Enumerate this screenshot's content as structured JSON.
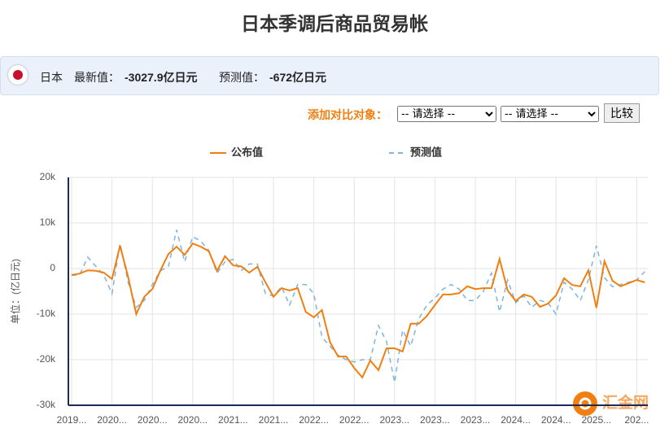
{
  "header": {
    "title": "日本季调后商品贸易帐"
  },
  "info": {
    "country": "日本",
    "latest_label": "最新值：",
    "latest_value": "-3027.9亿日元",
    "forecast_label": "预测值：",
    "forecast_value": "-672亿日元"
  },
  "compare": {
    "label": "添加对比对象：",
    "select_1": "-- 请选择 --",
    "select_2": "-- 请选择 --",
    "button": "比较"
  },
  "watermark": "汇金网",
  "chart_data": {
    "type": "line",
    "y_label": "单位：(亿日元)",
    "categories": [
      "2019...",
      null,
      null,
      null,
      null,
      "2020...",
      null,
      null,
      null,
      null,
      "2020...",
      null,
      null,
      null,
      null,
      "2020...",
      null,
      null,
      null,
      null,
      "2021...",
      null,
      null,
      null,
      null,
      "2021...",
      null,
      null,
      null,
      null,
      "2022...",
      null,
      null,
      null,
      null,
      "2022...",
      null,
      null,
      null,
      null,
      "2023...",
      null,
      null,
      null,
      null,
      "2023...",
      null,
      null,
      null,
      null,
      "2023...",
      null,
      null,
      null,
      null,
      "2024...",
      null,
      null,
      null,
      null,
      "2024...",
      null,
      null,
      null,
      null,
      "2025...",
      null,
      null,
      null,
      null,
      "202...",
      null
    ],
    "series": [
      {
        "name": "公布值",
        "color": "#f07f0f",
        "dashed": false,
        "values": [
          -1400,
          -1100,
          -400,
          -500,
          -900,
          -2300,
          5000,
          -1800,
          -10000,
          -6200,
          -4500,
          -400,
          3200,
          4800,
          3000,
          5500,
          4800,
          3800,
          -500,
          2700,
          700,
          500,
          -900,
          400,
          -3000,
          -6200,
          -4300,
          -4800,
          -4300,
          -9500,
          -10700,
          -9100,
          -16100,
          -19300,
          -19300,
          -21800,
          -23900,
          -20200,
          -22300,
          -17500,
          -17500,
          -18200,
          -12100,
          -12100,
          -10400,
          -8000,
          -5700,
          -5700,
          -5400,
          -3900,
          -4500,
          -4300,
          -4300,
          2100,
          -4800,
          -7100,
          -5700,
          -6200,
          -8400,
          -7700,
          -5900,
          -2100,
          -3600,
          -3900,
          -400,
          -8600,
          1600,
          -2700,
          -3900,
          -3200,
          -2500,
          -3028
        ]
      },
      {
        "name": "预测值",
        "color": "#7fb3e0",
        "dashed": true,
        "values": [
          -1500,
          -1400,
          2500,
          500,
          -1500,
          -5500,
          5500,
          -3000,
          -8500,
          -7000,
          -3500,
          -500,
          500,
          8500,
          1500,
          7000,
          6000,
          4000,
          -1000,
          1500,
          2000,
          -500,
          1000,
          1000,
          -5500,
          -6000,
          -4000,
          -8000,
          -3500,
          -3500,
          -5500,
          -15000,
          -17000,
          -19000,
          -20000,
          -20500,
          -20000,
          -20000,
          -12500,
          -16000,
          -25000,
          -13500,
          -17000,
          -11000,
          -8000,
          -6500,
          -4500,
          -3500,
          -4500,
          -7000,
          -7000,
          -5000,
          -1000,
          -9500,
          -2500,
          -7500,
          -6000,
          -8500,
          -7000,
          -7500,
          -10000,
          -3000,
          -4500,
          -7000,
          -2500,
          5000,
          -2000,
          -4000,
          -3500,
          -3000,
          -2500,
          -672
        ]
      }
    ],
    "ylim": [
      -30000,
      20000
    ],
    "yticks": [
      {
        "value": -30000,
        "label": "-30k"
      },
      {
        "value": -20000,
        "label": "-20k"
      },
      {
        "value": -10000,
        "label": "-10k"
      },
      0,
      {
        "value": 10000,
        "label": "10k"
      },
      {
        "value": 20000,
        "label": "20k"
      }
    ],
    "grid": true,
    "legend": "top"
  }
}
